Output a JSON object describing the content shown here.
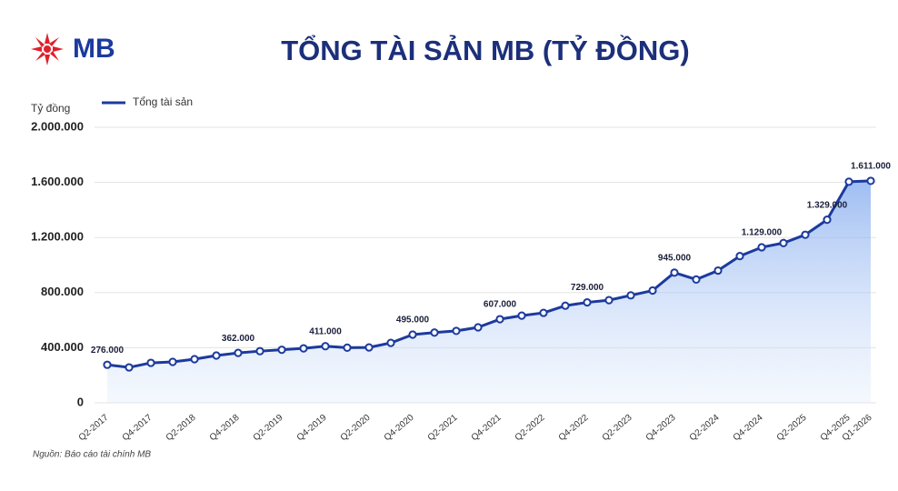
{
  "logo": "MB",
  "source": "Nguồn: Báo cáo tài chính MB",
  "chart_data": {
    "type": "line",
    "title": "TỔNG TÀI SẢN MB (TỶ ĐỒNG)",
    "y_label": "Tỷ đồng",
    "categories": [
      "Q2-2017",
      null,
      "Q4-2017",
      null,
      "Q2-2018",
      null,
      "Q4-2018",
      null,
      "Q2-2019",
      null,
      "Q4-2019",
      null,
      "Q2-2020",
      null,
      "Q4-2020",
      null,
      "Q2-2021",
      null,
      "Q4-2021",
      null,
      "Q2-2022",
      null,
      "Q4-2022",
      null,
      "Q2-2023",
      null,
      "Q4-2023",
      null,
      "Q2-2024",
      null,
      "Q4-2024",
      null,
      "Q2-2025",
      null,
      "Q4-2025",
      "Q1-2026"
    ],
    "series": [
      {
        "name": "Tổng tài sản",
        "color": "#1c3a9e",
        "values": [
          276000,
          257000,
          290000,
          297000,
          317000,
          343000,
          362000,
          375000,
          385000,
          395000,
          411000,
          400000,
          402000,
          435000,
          495000,
          510000,
          522000,
          548000,
          607000,
          633000,
          653000,
          705000,
          729000,
          745000,
          780000,
          815000,
          945000,
          895000,
          960000,
          1065000,
          1129000,
          1160000,
          1220000,
          1329000,
          1605000,
          1611000
        ],
        "value_labels": [
          "276.000",
          null,
          null,
          null,
          null,
          null,
          "362.000",
          null,
          null,
          null,
          "411.000",
          null,
          null,
          null,
          "495.000",
          null,
          null,
          null,
          "607.000",
          null,
          null,
          null,
          "729.000",
          null,
          null,
          null,
          "945.000",
          null,
          null,
          null,
          "1.129.000",
          null,
          null,
          "1.329.000",
          null,
          "1.611.000"
        ]
      }
    ],
    "ylim": [
      0,
      2000000
    ],
    "yticks": [
      0,
      {
        "value": 400000,
        "label": "400.000"
      },
      {
        "value": 800000,
        "label": "800.000"
      },
      {
        "value": 1200000,
        "label": "1.200.000"
      },
      {
        "value": 1600000,
        "label": "1.600.000"
      },
      {
        "value": 2000000,
        "label": "2.000.000"
      }
    ],
    "grid": true
  }
}
